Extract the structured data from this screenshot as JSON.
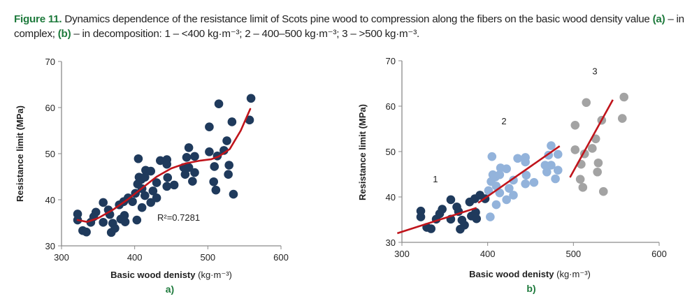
{
  "caption": {
    "label": "Figure 11.",
    "line1": " Dynamics dependence of the resistance limit of Scots pine wood to compression along the fibers on the basic wood density value ",
    "a_ref": "(a)",
    "mid": " – in complex; ",
    "b_ref": "(b)",
    "end": " – in decomposition: 1 – <400 kg·m⁻³; 2 – 400–500 kg·m⁻³; 3 – >500 kg·m⁻³."
  },
  "colors": {
    "dark": "#1f3a5c",
    "light": "#93b3db",
    "gray": "#a3a3a3",
    "trend": "#c0141b",
    "axis": "#8a8a8a",
    "green": "#1e7a3c"
  },
  "chart_data": [
    {
      "type": "scatter",
      "panel": "a)",
      "xlabel": "Basic wood denisty",
      "xunit": "(kg·m⁻³)",
      "ylabel": "Resistance limit (MPa)",
      "xlim": [
        300,
        600
      ],
      "ylim": [
        30,
        70
      ],
      "xticks": [
        "300",
        "400",
        "500",
        "600"
      ],
      "yticks": [
        "30",
        "40",
        "50",
        "60",
        "70"
      ],
      "annotation": "R²=0.7281",
      "trend": {
        "type": "polynomial",
        "points": [
          [
            322,
            35.6
          ],
          [
            335,
            35.2
          ],
          [
            350,
            36
          ],
          [
            370,
            37.8
          ],
          [
            390,
            40
          ],
          [
            410,
            42.5
          ],
          [
            430,
            45
          ],
          [
            450,
            46.8
          ],
          [
            470,
            47.9
          ],
          [
            490,
            48.5
          ],
          [
            505,
            48.8
          ],
          [
            515,
            49.4
          ],
          [
            530,
            51
          ],
          [
            545,
            55
          ],
          [
            558,
            59.7
          ]
        ]
      }
    },
    {
      "type": "scatter",
      "panel": "b)",
      "xlabel": "Basic wood denisty",
      "xunit": "(kg·m⁻³)",
      "ylabel": "Resistance limit (MPa)",
      "xlim": [
        300,
        600
      ],
      "ylim": [
        30,
        70
      ],
      "xticks": [
        "300",
        "400",
        "500",
        "600"
      ],
      "yticks": [
        "30",
        "40",
        "50",
        "60",
        "70"
      ],
      "groups": [
        {
          "name": "1",
          "range": "<400",
          "label_pos": [
            339,
            43.2
          ],
          "trend": [
            [
              294.6,
              32.0
            ],
            [
              387,
              37.6
            ]
          ]
        },
        {
          "name": "2",
          "range": "400–500",
          "label_pos": [
            419,
            56
          ],
          "trend": [
            [
              389,
              38.7
            ],
            [
              484,
              51.2
            ]
          ]
        },
        {
          "name": "3",
          "range": ">500",
          "label_pos": [
            525,
            67
          ],
          "trend": [
            [
              496,
              44.3
            ],
            [
              546,
              61.4
            ]
          ]
        }
      ]
    }
  ],
  "points": [
    [
      322,
      36.9
    ],
    [
      322,
      35.6
    ],
    [
      329,
      33.3
    ],
    [
      334,
      33.0
    ],
    [
      340,
      35.1
    ],
    [
      344,
      36.3
    ],
    [
      347,
      37.3
    ],
    [
      357,
      39.4
    ],
    [
      357,
      35.1
    ],
    [
      364,
      37.8
    ],
    [
      366,
      36.8
    ],
    [
      368,
      32.9
    ],
    [
      370,
      34.9
    ],
    [
      373,
      33.8
    ],
    [
      379,
      38.9
    ],
    [
      381,
      35.8
    ],
    [
      386,
      36.6
    ],
    [
      387,
      35.2
    ],
    [
      385,
      39.6
    ],
    [
      391,
      40.4
    ],
    [
      397,
      39.6
    ],
    [
      403,
      35.6
    ],
    [
      401,
      41.4
    ],
    [
      404,
      43.4
    ],
    [
      405,
      48.9
    ],
    [
      406,
      44.9
    ],
    [
      409,
      44.4
    ],
    [
      410,
      42.4
    ],
    [
      410,
      38.3
    ],
    [
      414,
      40.9
    ],
    [
      415,
      46.4
    ],
    [
      414,
      44.9
    ],
    [
      422,
      46.2
    ],
    [
      422,
      39.4
    ],
    [
      425,
      41.9
    ],
    [
      430,
      40.4
    ],
    [
      430,
      43.7
    ],
    [
      435,
      48.5
    ],
    [
      444,
      48.7
    ],
    [
      444,
      47.7
    ],
    [
      445,
      44.8
    ],
    [
      444,
      42.9
    ],
    [
      454,
      43.2
    ],
    [
      467,
      47.0
    ],
    [
      469,
      45.5
    ],
    [
      471,
      49.2
    ],
    [
      474,
      51.3
    ],
    [
      474,
      47.0
    ],
    [
      479,
      44.0
    ],
    [
      482,
      49.4
    ],
    [
      482,
      45.9
    ],
    [
      502,
      55.8
    ],
    [
      502,
      50.4
    ],
    [
      508,
      43.9
    ],
    [
      509,
      47.2
    ],
    [
      511,
      42.1
    ],
    [
      513,
      49.5
    ],
    [
      515,
      60.8
    ],
    [
      522,
      50.7
    ],
    [
      526,
      52.8
    ],
    [
      528,
      45.5
    ],
    [
      529,
      47.5
    ],
    [
      533,
      56.9
    ],
    [
      535,
      41.2
    ],
    [
      557,
      57.3
    ],
    [
      559,
      62.0
    ]
  ]
}
